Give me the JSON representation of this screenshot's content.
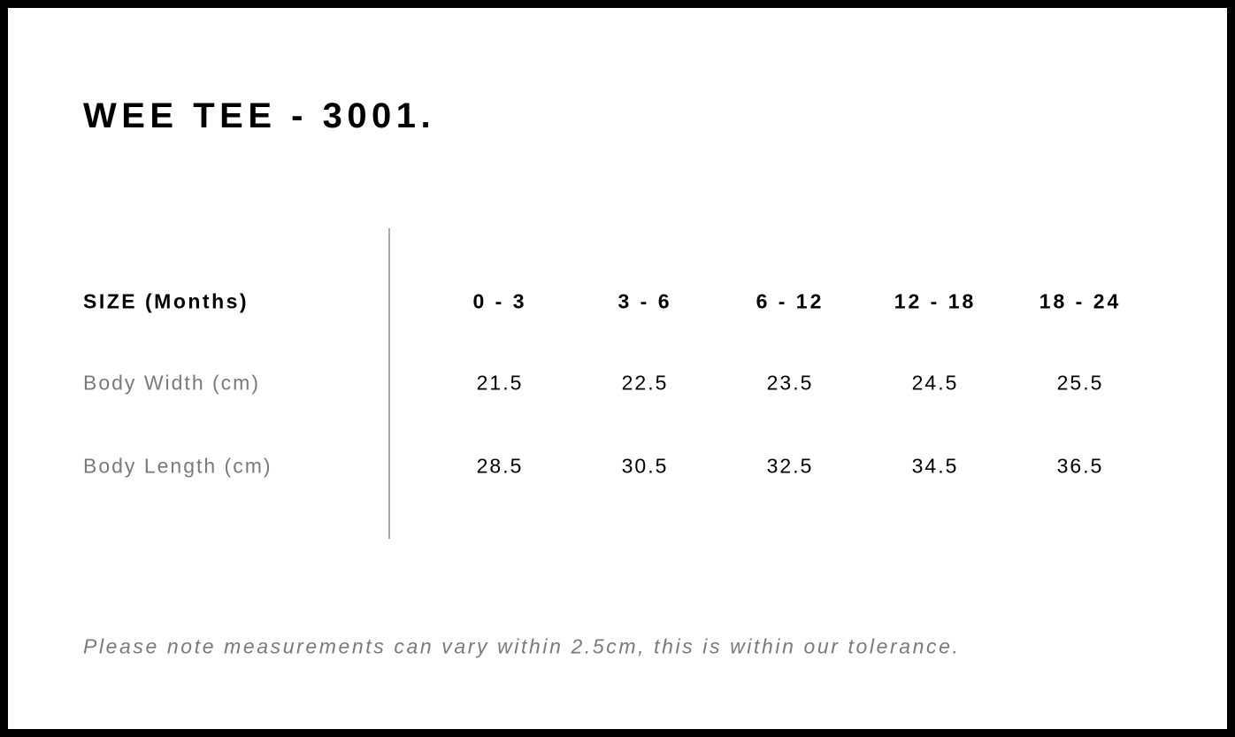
{
  "title": "WEE TEE - 3001.",
  "table": {
    "header_label": "SIZE (Months)",
    "sizes": [
      "0 - 3",
      "3 - 6",
      "6 - 12",
      "12 - 18",
      "18 - 24"
    ],
    "rows": [
      {
        "label": "Body Width (cm)",
        "values": [
          "21.5",
          "22.5",
          "23.5",
          "24.5",
          "25.5"
        ]
      },
      {
        "label": "Body Length (cm)",
        "values": [
          "28.5",
          "30.5",
          "32.5",
          "34.5",
          "36.5"
        ]
      }
    ]
  },
  "note": "Please note measurements can vary within 2.5cm, this is within our tolerance."
}
